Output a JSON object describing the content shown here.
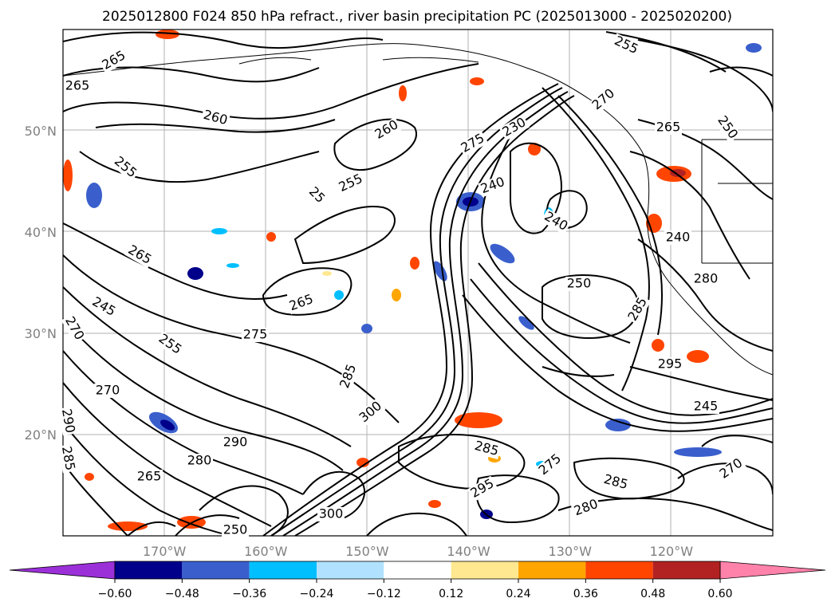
{
  "title": "2025012800 F024 850 hPa refract., river basin precipitation PC (2025013000 - 2025020200)",
  "map": {
    "lat_labels": [
      {
        "text": "50°N",
        "lat": 50
      },
      {
        "text": "40°N",
        "lat": 40
      },
      {
        "text": "30°N",
        "lat": 30
      },
      {
        "text": "20°N",
        "lat": 20
      }
    ],
    "lon_labels": [
      {
        "text": "170°W",
        "lon": -170
      },
      {
        "text": "160°W",
        "lon": -160
      },
      {
        "text": "150°W",
        "lon": -150
      },
      {
        "text": "140°W",
        "lon": -140
      },
      {
        "text": "130°W",
        "lon": -130
      },
      {
        "text": "120°W",
        "lon": -120
      }
    ],
    "lon_range": [
      -180,
      -110
    ],
    "lat_range": [
      10,
      60
    ],
    "gridlines": true,
    "contour_labels": [
      "265",
      "265",
      "260",
      "255",
      "260",
      "275",
      "230",
      "240",
      "255",
      "270",
      "25",
      "255",
      "240",
      "265",
      "250",
      "265",
      "240",
      "265",
      "250",
      "280",
      "245",
      "285",
      "270",
      "275",
      "255",
      "295",
      "270",
      "285",
      "245",
      "290",
      "265",
      "300",
      "290",
      "285",
      "275",
      "280",
      "295",
      "285",
      "280",
      "270",
      "300",
      "250",
      "285"
    ]
  },
  "colorbar": {
    "ticks": [
      "−0.60",
      "−0.48",
      "−0.36",
      "−0.24",
      "−0.12",
      "0.12",
      "0.24",
      "0.36",
      "0.48",
      "0.60"
    ],
    "colors": [
      "#9b30d9",
      "#00008b",
      "#3a5fcd",
      "#00bfff",
      "#b0e2ff",
      "#ffffff",
      "#ffe890",
      "#ffa500",
      "#ff4500",
      "#b22222",
      "#ff82ab"
    ]
  }
}
